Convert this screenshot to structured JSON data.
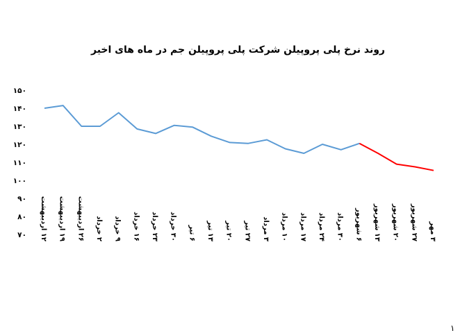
{
  "page_number": "۱",
  "chart_data": {
    "type": "line",
    "title": "روند نرخ پلی پروپیلن شرکت پلی پروپیلن جم در ماه های اخیر",
    "xlabel": "",
    "ylabel": "",
    "ylim": [
      70,
      150
    ],
    "ytick_values": [
      70,
      80,
      90,
      100,
      110,
      120,
      130,
      140,
      150
    ],
    "ytick_labels": [
      "۷۰",
      "۸۰",
      "۹۰",
      "۱۰۰",
      "۱۱۰",
      "۱۲۰",
      "۱۳۰",
      "۱۴۰",
      "۱۵۰"
    ],
    "grid": false,
    "legend": "none",
    "categories": [
      "۱۲ اردیبهشت",
      "۱۹ اردیبهشت",
      "۲۶ اردیبهشت",
      "۲ خرداد",
      "۹ خرداد",
      "۱۶ خرداد",
      "۲۳ خرداد",
      "۳۰ خرداد",
      "۶ تیر",
      "۱۳ تیر",
      "۲۰ تیر",
      "۲۷ تیر",
      "۳ مرداد",
      "۱۰ مرداد",
      "۱۷ مرداد",
      "۲۴ مرداد",
      "۳۰ مرداد",
      "۶ شهریور",
      "۱۳ شهریور",
      "۲۰ شهریور",
      "۲۷ شهریور",
      "۳ مهر"
    ],
    "series": [
      {
        "color": "#5b9bd5",
        "values": [
          140,
          141.5,
          130,
          130,
          137.5,
          128.5,
          126,
          130.5,
          129.5,
          124.5,
          121,
          120.5,
          122.5,
          117.5,
          115,
          120,
          117,
          120.5,
          null,
          null,
          null,
          null
        ]
      },
      {
        "color": "#ff0000",
        "values": [
          null,
          null,
          null,
          null,
          null,
          null,
          null,
          null,
          null,
          null,
          null,
          null,
          null,
          null,
          null,
          null,
          null,
          120.5,
          115,
          109,
          107.5,
          105.5
        ]
      }
    ]
  }
}
